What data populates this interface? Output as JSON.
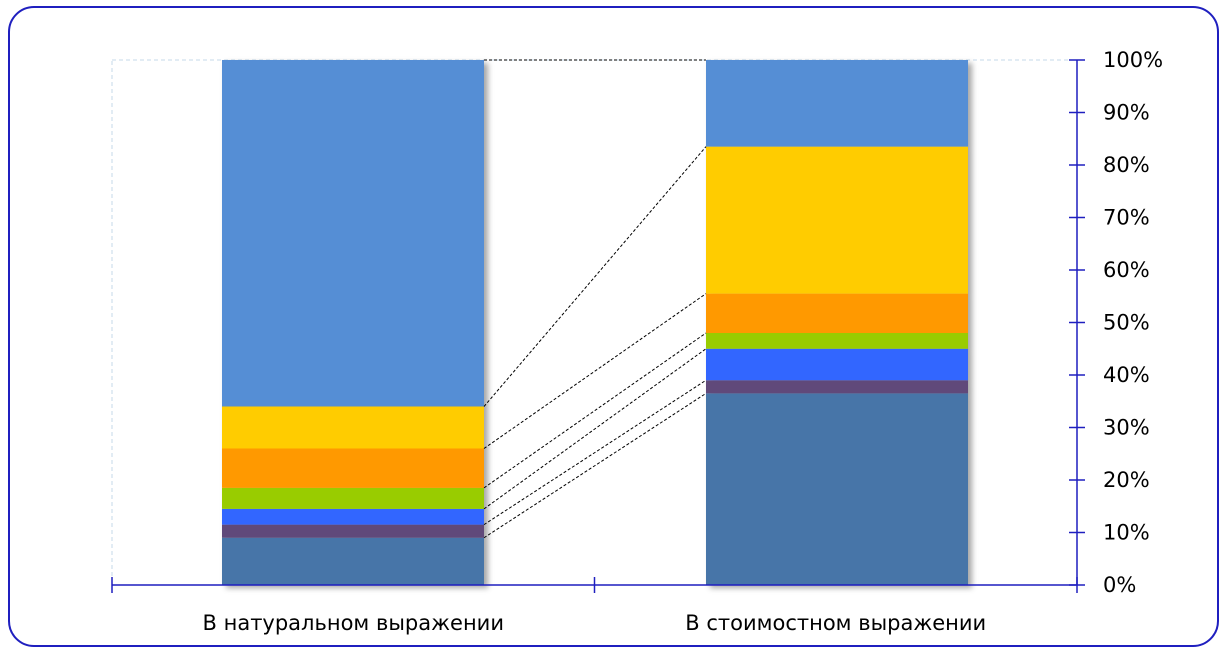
{
  "chart_data": {
    "type": "bar",
    "stacked": "percent",
    "categories": [
      "В натуральном выражении",
      "В стоимостном выражении"
    ],
    "series": [
      {
        "values": [
          9,
          36.5
        ],
        "color": "#4674a8"
      },
      {
        "values": [
          2.5,
          2.5
        ],
        "color": "#60497a"
      },
      {
        "values": [
          3,
          6
        ],
        "color": "#3366ff"
      },
      {
        "values": [
          4,
          3
        ],
        "color": "#99cc00"
      },
      {
        "values": [
          7.5,
          7.5
        ],
        "color": "#ff9900"
      },
      {
        "values": [
          8,
          28
        ],
        "color": "#ffcc00"
      },
      {
        "values": [
          66,
          16.5
        ],
        "color": "#558ed5"
      }
    ],
    "y_ticks": [
      "0%",
      "10%",
      "20%",
      "30%",
      "40%",
      "50%",
      "60%",
      "70%",
      "80%",
      "90%",
      "100%"
    ],
    "ylim": [
      0,
      100
    ],
    "y_axis_side": "right",
    "series_lines": true,
    "grid": false,
    "legend": "none",
    "axis_color": "#1f1fbf"
  }
}
